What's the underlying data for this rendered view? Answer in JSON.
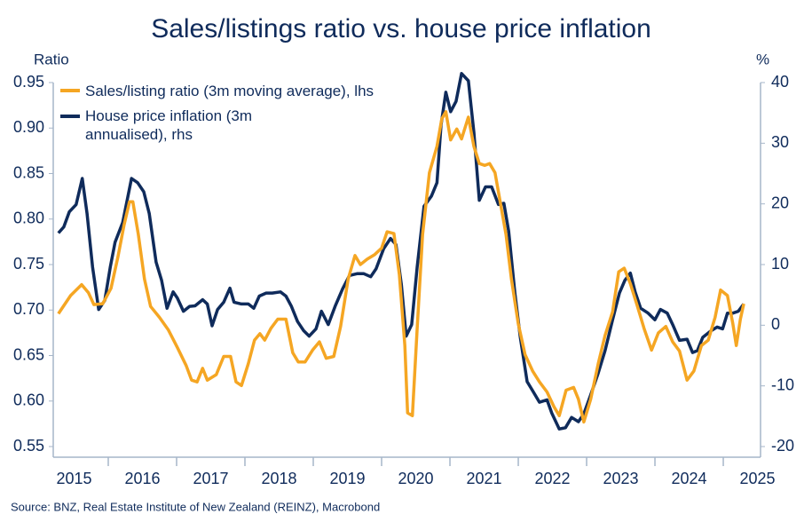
{
  "chart_data": {
    "type": "line",
    "title": "Sales/listings ratio vs. house price inflation",
    "ylabel": "Ratio",
    "y2label": "%",
    "source": "Source: BNZ, Real Estate Institute of New Zealand (REINZ), Macrobond",
    "xlim": [
      2015.195,
      2025.545
    ],
    "xticks": [
      2016,
      2017,
      2018,
      2019,
      2020,
      2021,
      2022,
      2023,
      2024,
      2025
    ],
    "years": [
      2015,
      2016,
      2017,
      2018,
      2019,
      2020,
      2021,
      2022,
      2023,
      2024,
      2025
    ],
    "ylim": [
      0.55,
      0.95
    ],
    "yticks": [
      0.55,
      {
        "value": 0.6,
        "label": "0.60"
      },
      0.65,
      {
        "value": 0.7,
        "label": "0.70"
      },
      0.75,
      {
        "value": 0.8,
        "label": "0.80"
      },
      0.85,
      {
        "value": 0.9,
        "label": "0.90"
      },
      0.95
    ],
    "y2lim": [
      -20,
      40
    ],
    "y2ticks": [
      -20,
      -10,
      0,
      10,
      20,
      30,
      40
    ],
    "series": [
      {
        "name": "Sales/listing ratio (3m moving average), lhs",
        "color": "#f5a623",
        "x": [
          2015.27,
          2015.45,
          2015.61,
          2015.71,
          2015.79,
          2015.92,
          2016.04,
          2016.14,
          2016.23,
          2016.31,
          2016.36,
          2016.44,
          2016.53,
          2016.62,
          2016.75,
          2016.88,
          2017.01,
          2017.14,
          2017.22,
          2017.3,
          2017.38,
          2017.45,
          2017.58,
          2017.69,
          2017.79,
          2017.87,
          2017.95,
          2018.05,
          2018.14,
          2018.22,
          2018.29,
          2018.38,
          2018.48,
          2018.6,
          2018.7,
          2018.78,
          2018.88,
          2018.99,
          2019.09,
          2019.19,
          2019.3,
          2019.4,
          2019.51,
          2019.61,
          2019.69,
          2019.79,
          2019.9,
          2020.0,
          2020.08,
          2020.18,
          2020.26,
          2020.34,
          2020.38,
          2020.45,
          2020.52,
          2020.6,
          2020.7,
          2020.81,
          2020.88,
          2020.94,
          2021.01,
          2021.1,
          2021.17,
          2021.27,
          2021.35,
          2021.43,
          2021.51,
          2021.58,
          2021.66,
          2021.74,
          2021.82,
          2021.9,
          2022.0,
          2022.1,
          2022.21,
          2022.31,
          2022.42,
          2022.52,
          2022.6,
          2022.7,
          2022.81,
          2022.88,
          2022.96,
          2023.06,
          2023.17,
          2023.27,
          2023.38,
          2023.47,
          2023.55,
          2023.64,
          2023.74,
          2023.84,
          2023.95,
          2024.05,
          2024.16,
          2024.26,
          2024.36,
          2024.47,
          2024.57,
          2024.68,
          2024.78,
          2024.88,
          2024.96,
          2025.06,
          2025.14,
          2025.19,
          2025.25,
          2025.3
        ],
        "values": [
          0.696,
          0.716,
          0.728,
          0.719,
          0.706,
          0.707,
          0.724,
          0.758,
          0.793,
          0.819,
          0.819,
          0.783,
          0.734,
          0.704,
          0.692,
          0.678,
          0.659,
          0.639,
          0.623,
          0.621,
          0.636,
          0.623,
          0.629,
          0.649,
          0.649,
          0.621,
          0.617,
          0.641,
          0.667,
          0.674,
          0.667,
          0.68,
          0.69,
          0.69,
          0.653,
          0.643,
          0.643,
          0.656,
          0.665,
          0.647,
          0.649,
          0.682,
          0.734,
          0.76,
          0.75,
          0.756,
          0.761,
          0.768,
          0.786,
          0.784,
          0.739,
          0.661,
          0.587,
          0.584,
          0.68,
          0.783,
          0.851,
          0.88,
          0.91,
          0.918,
          0.887,
          0.899,
          0.888,
          0.912,
          0.88,
          0.861,
          0.859,
          0.861,
          0.851,
          0.817,
          0.783,
          0.734,
          0.685,
          0.651,
          0.633,
          0.621,
          0.61,
          0.594,
          0.584,
          0.612,
          0.615,
          0.602,
          0.577,
          0.602,
          0.641,
          0.672,
          0.698,
          0.742,
          0.746,
          0.729,
          0.705,
          0.68,
          0.656,
          0.675,
          0.682,
          0.665,
          0.655,
          0.623,
          0.633,
          0.661,
          0.667,
          0.692,
          0.722,
          0.716,
          0.685,
          0.661,
          0.69,
          0.707
        ]
      },
      {
        "name": "House price inflation (3m annualised), rhs",
        "color": "#0f2b5b",
        "axis": "y2",
        "x": [
          2015.27,
          2015.35,
          2015.43,
          2015.53,
          2015.62,
          2015.69,
          2015.77,
          2015.86,
          2015.95,
          2016.03,
          2016.1,
          2016.21,
          2016.34,
          2016.43,
          2016.52,
          2016.6,
          2016.7,
          2016.78,
          2016.86,
          2016.95,
          2017.01,
          2017.1,
          2017.19,
          2017.27,
          2017.38,
          2017.45,
          2017.52,
          2017.6,
          2017.69,
          2017.78,
          2017.84,
          2017.95,
          2018.05,
          2018.13,
          2018.21,
          2018.31,
          2018.4,
          2018.52,
          2018.6,
          2018.68,
          2018.77,
          2018.86,
          2018.94,
          2019.04,
          2019.12,
          2019.22,
          2019.32,
          2019.43,
          2019.53,
          2019.64,
          2019.74,
          2019.84,
          2019.92,
          2020.03,
          2020.13,
          2020.21,
          2020.29,
          2020.36,
          2020.44,
          2020.52,
          2020.62,
          2020.73,
          2020.81,
          2020.87,
          2020.94,
          2021.01,
          2021.09,
          2021.17,
          2021.27,
          2021.35,
          2021.43,
          2021.52,
          2021.61,
          2021.71,
          2021.79,
          2021.86,
          2021.95,
          2022.03,
          2022.13,
          2022.21,
          2022.31,
          2022.42,
          2022.49,
          2022.6,
          2022.69,
          2022.78,
          2022.88,
          2022.96,
          2023.06,
          2023.17,
          2023.27,
          2023.38,
          2023.48,
          2023.56,
          2023.64,
          2023.71,
          2023.79,
          2023.9,
          2024.0,
          2024.08,
          2024.18,
          2024.26,
          2024.36,
          2024.47,
          2024.55,
          2024.62,
          2024.7,
          2024.81,
          2024.91,
          2024.99,
          2025.06,
          2025.14,
          2025.22,
          2025.3
        ],
        "values": [
          15.2,
          16.2,
          18.7,
          19.9,
          24.2,
          18.4,
          9.6,
          2.6,
          4.1,
          9.6,
          13.7,
          16.9,
          24.2,
          23.5,
          22.0,
          18.4,
          10.4,
          7.4,
          2.8,
          5.5,
          4.5,
          2.3,
          3.1,
          3.2,
          4.2,
          3.5,
          -0.1,
          2.6,
          3.8,
          6.1,
          3.8,
          3.5,
          3.5,
          2.8,
          4.8,
          5.3,
          5.3,
          5.5,
          4.8,
          3.1,
          0.6,
          -0.9,
          -1.8,
          -0.6,
          2.3,
          0.1,
          3.1,
          6.0,
          8.2,
          8.5,
          8.5,
          8.0,
          9.3,
          12.6,
          14.3,
          13.3,
          6.7,
          -1.8,
          0.1,
          9.6,
          19.6,
          21.3,
          23.5,
          33.0,
          38.4,
          35.2,
          36.9,
          41.5,
          40.3,
          31.8,
          20.6,
          22.8,
          22.8,
          19.9,
          20.1,
          15.5,
          5.3,
          -2.0,
          -9.3,
          -10.8,
          -12.7,
          -12.3,
          -14.5,
          -17.1,
          -16.9,
          -15.2,
          -15.9,
          -14.6,
          -11.5,
          -7.9,
          -4.2,
          0.9,
          5.3,
          7.4,
          8.6,
          5.5,
          2.8,
          2.0,
          0.9,
          2.6,
          2.0,
          0.1,
          -2.5,
          -2.3,
          -4.5,
          -4.2,
          -2.0,
          -1.0,
          -0.3,
          -0.6,
          2.0,
          2.0,
          2.3,
          3.5
        ]
      }
    ]
  }
}
